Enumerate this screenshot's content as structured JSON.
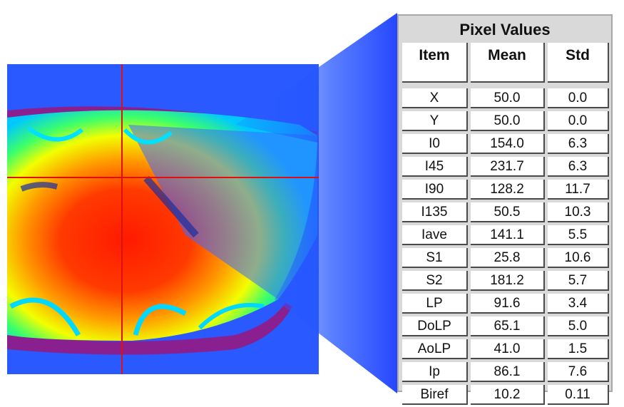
{
  "panel": {
    "title": "Pixel Values",
    "columns": [
      "Item",
      "Mean",
      "Std"
    ],
    "rows": [
      {
        "item": "X",
        "mean": "50.0",
        "std": "0.0"
      },
      {
        "item": "Y",
        "mean": "50.0",
        "std": "0.0"
      },
      {
        "item": "I0",
        "mean": "154.0",
        "std": "6.3"
      },
      {
        "item": "I45",
        "mean": "231.7",
        "std": "6.3"
      },
      {
        "item": "I90",
        "mean": "128.2",
        "std": "11.7"
      },
      {
        "item": "I135",
        "mean": "50.5",
        "std": "10.3"
      },
      {
        "item": "Iave",
        "mean": "141.1",
        "std": "5.5"
      },
      {
        "item": "S1",
        "mean": "25.8",
        "std": "10.6"
      },
      {
        "item": "S2",
        "mean": "181.2",
        "std": "5.7"
      },
      {
        "item": "LP",
        "mean": "91.6",
        "std": "3.4"
      },
      {
        "item": "DoLP",
        "mean": "65.1",
        "std": "5.0"
      },
      {
        "item": "AoLP",
        "mean": "41.0",
        "std": "1.5"
      },
      {
        "item": "Ip",
        "mean": "86.1",
        "std": "7.6"
      },
      {
        "item": "Biref",
        "mean": "10.2",
        "std": "0.11"
      }
    ]
  },
  "colors": {
    "background_blue": "#1f4fff",
    "crosshair": "#e01010",
    "ring_purple": "#8a1f8f",
    "callout_blue": "#1a3dff",
    "panel_gray": "#d9d9d9"
  }
}
